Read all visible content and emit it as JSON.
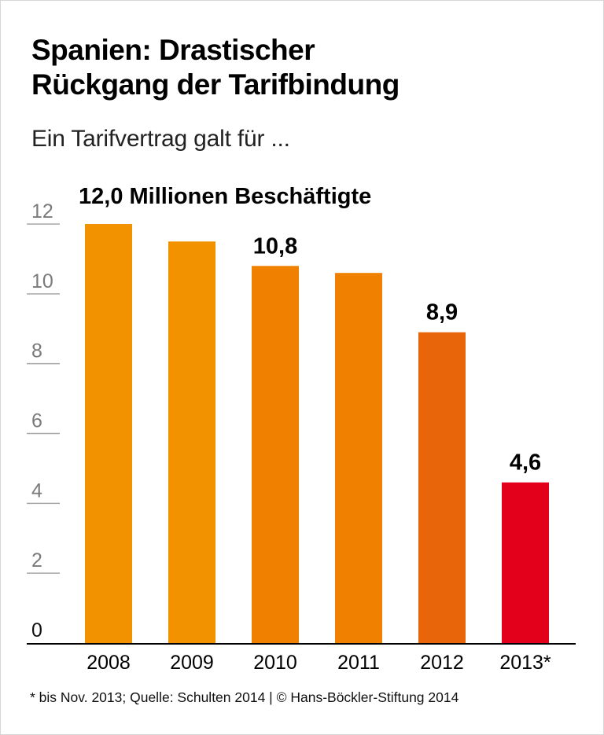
{
  "header": {
    "title_line1": "Spanien: Drastischer",
    "title_line2": "Rückgang der Tarifbindung",
    "subtitle": "Ein Tarifvertrag galt für ..."
  },
  "footer": {
    "note": "* bis Nov. 2013; Quelle: Schulten 2014 | © Hans-Böckler-Stiftung 2014"
  },
  "chart_data": {
    "type": "bar",
    "title": "Spanien: Drastischer Rückgang der Tarifbindung",
    "subtitle": "Ein Tarifvertrag galt für ...",
    "xlabel": "",
    "ylabel": "",
    "ylim": [
      0,
      12
    ],
    "yticks": [
      "0",
      "2",
      "4",
      "6",
      "8",
      "10",
      "12"
    ],
    "categories": [
      "2008",
      "2009",
      "2010",
      "2011",
      "2012",
      "2013*"
    ],
    "values": [
      12.0,
      11.5,
      10.8,
      10.6,
      8.9,
      4.6
    ],
    "data_labels": [
      "12,0 Millionen Beschäftigte",
      "",
      "10,8",
      "",
      "8,9",
      "4,6"
    ],
    "unit": "Millionen Beschäftigte",
    "colors": [
      "#f39200",
      "#f39200",
      "#ef8000",
      "#ef8000",
      "#e8650a",
      "#e2001a"
    ],
    "grid": false,
    "legend": "none"
  }
}
